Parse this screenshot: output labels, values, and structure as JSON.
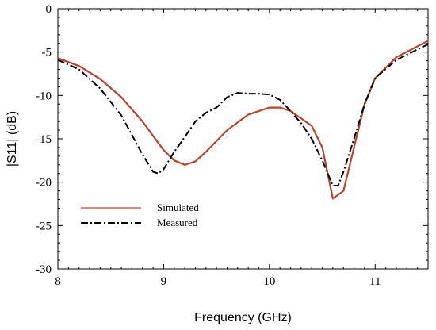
{
  "chart_data": {
    "type": "line",
    "title": "",
    "xlabel": "Frequency (GHz)",
    "ylabel": "|S11| (dB)",
    "xlim": [
      8,
      11.5
    ],
    "ylim": [
      -30,
      0
    ],
    "xticks": [
      8,
      9,
      10,
      11
    ],
    "yticks": [
      0,
      -5,
      -10,
      -15,
      -20,
      -25,
      -30
    ],
    "xtick_labels": [
      "8",
      "9",
      "10",
      "11"
    ],
    "ytick_labels": [
      "0",
      "-5",
      "-10",
      "-15",
      "-20",
      "-25",
      "-30"
    ],
    "grid": false,
    "legend_position": "lower-left",
    "series": [
      {
        "name": "Simulated",
        "color": "#b5452f",
        "dash": "solid",
        "points": [
          [
            8.0,
            -5.7
          ],
          [
            8.2,
            -6.6
          ],
          [
            8.4,
            -8.1
          ],
          [
            8.6,
            -10.2
          ],
          [
            8.8,
            -13.0
          ],
          [
            9.0,
            -16.3
          ],
          [
            9.1,
            -17.5
          ],
          [
            9.2,
            -18.0
          ],
          [
            9.3,
            -17.6
          ],
          [
            9.4,
            -16.5
          ],
          [
            9.6,
            -14.0
          ],
          [
            9.8,
            -12.2
          ],
          [
            10.0,
            -11.4
          ],
          [
            10.1,
            -11.4
          ],
          [
            10.2,
            -11.8
          ],
          [
            10.4,
            -13.5
          ],
          [
            10.5,
            -16.0
          ],
          [
            10.6,
            -21.9
          ],
          [
            10.7,
            -21.0
          ],
          [
            10.8,
            -16.0
          ],
          [
            10.9,
            -11.0
          ],
          [
            11.0,
            -8.0
          ],
          [
            11.2,
            -5.6
          ],
          [
            11.5,
            -3.7
          ]
        ]
      },
      {
        "name": "Measured",
        "color": "#000000",
        "dash": "dashdot",
        "points": [
          [
            8.0,
            -5.9
          ],
          [
            8.2,
            -7.0
          ],
          [
            8.4,
            -9.2
          ],
          [
            8.6,
            -12.3
          ],
          [
            8.8,
            -16.8
          ],
          [
            8.9,
            -18.8
          ],
          [
            8.95,
            -19.0
          ],
          [
            9.0,
            -18.5
          ],
          [
            9.1,
            -16.5
          ],
          [
            9.2,
            -14.8
          ],
          [
            9.3,
            -13.0
          ],
          [
            9.4,
            -12.0
          ],
          [
            9.5,
            -11.4
          ],
          [
            9.6,
            -10.2
          ],
          [
            9.7,
            -9.7
          ],
          [
            9.8,
            -9.8
          ],
          [
            9.9,
            -9.8
          ],
          [
            10.0,
            -9.9
          ],
          [
            10.1,
            -10.5
          ],
          [
            10.2,
            -11.8
          ],
          [
            10.3,
            -13.2
          ],
          [
            10.4,
            -15.0
          ],
          [
            10.5,
            -17.5
          ],
          [
            10.6,
            -20.4
          ],
          [
            10.65,
            -20.4
          ],
          [
            10.7,
            -18.8
          ],
          [
            10.8,
            -15.0
          ],
          [
            10.9,
            -11.0
          ],
          [
            11.0,
            -8.0
          ],
          [
            11.2,
            -5.9
          ],
          [
            11.5,
            -4.1
          ]
        ]
      }
    ]
  }
}
